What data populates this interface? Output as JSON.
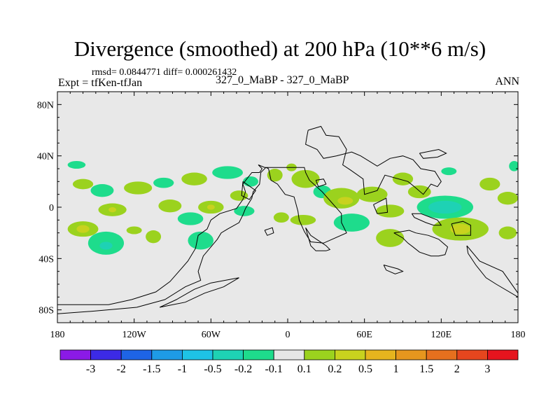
{
  "header": {
    "title": "Divergence (smoothed) at 200 hPa (10**6 m/s)",
    "stats": "rmsd= 0.0844771 diff= 0.000261432",
    "expt": "Expt = tfKen-tfJan",
    "case": "327_0_MaBP - 327_0_MaBP",
    "season": "ANN"
  },
  "chart_data": {
    "type": "heatmap",
    "title": "Divergence (smoothed) at 200 hPa (10**6 m/s)",
    "xlim": [
      -180,
      180
    ],
    "ylim": [
      -90,
      90
    ],
    "x_ticks": [
      {
        "value": -180,
        "label": "180"
      },
      {
        "value": -120,
        "label": "120W"
      },
      {
        "value": -60,
        "label": "60W"
      },
      {
        "value": 0,
        "label": "0"
      },
      {
        "value": 60,
        "label": "60E"
      },
      {
        "value": 120,
        "label": "120E"
      },
      {
        "value": 180,
        "label": "180"
      }
    ],
    "y_ticks": [
      {
        "value": 80,
        "label": "80N"
      },
      {
        "value": 40,
        "label": "40N"
      },
      {
        "value": 0,
        "label": "0"
      },
      {
        "value": -40,
        "label": "40S"
      },
      {
        "value": -80,
        "label": "80S"
      }
    ],
    "background_color": "#e8e8e8",
    "colorbar": {
      "colors": [
        "#8b1ae6",
        "#3c2ae6",
        "#1e64e6",
        "#1e9be6",
        "#1ec3e6",
        "#1ed2b4",
        "#1edc8c",
        "#e6e6e6",
        "#9bd21e",
        "#c8d21e",
        "#e6b41e",
        "#e6961e",
        "#e6701e",
        "#e6461e",
        "#e6141e"
      ],
      "labels": [
        "-3",
        "-2",
        "-1.5",
        "-1",
        "-0.5",
        "-0.2",
        "-0.1",
        "0.1",
        "0.2",
        "0.5",
        "1",
        "1.5",
        "2",
        "3"
      ]
    },
    "features": [
      {
        "lon": -165,
        "lat": 33,
        "rx": 7,
        "ry": 3,
        "level": -0.1
      },
      {
        "lon": -160,
        "lat": 18,
        "rx": 8,
        "ry": 4,
        "level": 0.1
      },
      {
        "lon": -160,
        "lat": -17,
        "rx": 12,
        "ry": 6,
        "level": 0.1
      },
      {
        "lon": -160,
        "lat": -17,
        "rx": 5,
        "ry": 3,
        "level": 0.2
      },
      {
        "lon": -145,
        "lat": 13,
        "rx": 9,
        "ry": 5,
        "level": -0.1
      },
      {
        "lon": -137,
        "lat": -2,
        "rx": 11,
        "ry": 5,
        "level": 0.1
      },
      {
        "lon": -137,
        "lat": -2,
        "rx": 3,
        "ry": 2,
        "level": 0.2
      },
      {
        "lon": -142,
        "lat": -28,
        "rx": 14,
        "ry": 9,
        "level": -0.1
      },
      {
        "lon": -142,
        "lat": -30,
        "rx": 5,
        "ry": 3,
        "level": -0.2
      },
      {
        "lon": -117,
        "lat": 15,
        "rx": 11,
        "ry": 5,
        "level": 0.1
      },
      {
        "lon": -120,
        "lat": -18,
        "rx": 6,
        "ry": 3,
        "level": 0.1
      },
      {
        "lon": -105,
        "lat": -23,
        "rx": 6,
        "ry": 5,
        "level": 0.1
      },
      {
        "lon": -97,
        "lat": 19,
        "rx": 8,
        "ry": 4,
        "level": -0.1
      },
      {
        "lon": -92,
        "lat": 1,
        "rx": 9,
        "ry": 5,
        "level": 0.1
      },
      {
        "lon": -73,
        "lat": 22,
        "rx": 10,
        "ry": 5,
        "level": 0.1
      },
      {
        "lon": -76,
        "lat": -9,
        "rx": 10,
        "ry": 5,
        "level": -0.1
      },
      {
        "lon": -68,
        "lat": -26,
        "rx": 10,
        "ry": 7,
        "level": -0.1
      },
      {
        "lon": -60,
        "lat": 0,
        "rx": 10,
        "ry": 5,
        "level": 0.1
      },
      {
        "lon": -60,
        "lat": 0,
        "rx": 3,
        "ry": 2,
        "level": 0.2
      },
      {
        "lon": -47,
        "lat": 27,
        "rx": 12,
        "ry": 5,
        "level": -0.1
      },
      {
        "lon": -38,
        "lat": 9,
        "rx": 7,
        "ry": 4,
        "level": 0.1
      },
      {
        "lon": -29,
        "lat": 20,
        "rx": 6,
        "ry": 4,
        "level": -0.1
      },
      {
        "lon": -34,
        "lat": -3,
        "rx": 8,
        "ry": 4,
        "level": -0.1
      },
      {
        "lon": -10,
        "lat": 25,
        "rx": 6,
        "ry": 5,
        "level": 0.1
      },
      {
        "lon": -5,
        "lat": -8,
        "rx": 6,
        "ry": 4,
        "level": 0.1
      },
      {
        "lon": 3,
        "lat": 31,
        "rx": 4,
        "ry": 3,
        "level": 0.1
      },
      {
        "lon": 14,
        "lat": 22,
        "rx": 11,
        "ry": 7,
        "level": 0.1
      },
      {
        "lon": 12,
        "lat": -10,
        "rx": 10,
        "ry": 4,
        "level": 0.1
      },
      {
        "lon": 27,
        "lat": 12,
        "rx": 7,
        "ry": 5,
        "level": -0.1
      },
      {
        "lon": 42,
        "lat": 7,
        "rx": 14,
        "ry": 8,
        "level": 0.1
      },
      {
        "lon": 45,
        "lat": 5,
        "rx": 6,
        "ry": 3,
        "level": 0.2
      },
      {
        "lon": 50,
        "lat": -12,
        "rx": 14,
        "ry": 7,
        "level": -0.1
      },
      {
        "lon": 66,
        "lat": 10,
        "rx": 12,
        "ry": 6,
        "level": 0.1
      },
      {
        "lon": 90,
        "lat": 22,
        "rx": 8,
        "ry": 5,
        "level": 0.1
      },
      {
        "lon": 80,
        "lat": -3,
        "rx": 11,
        "ry": 5,
        "level": 0.1
      },
      {
        "lon": 80,
        "lat": -24,
        "rx": 11,
        "ry": 7,
        "level": 0.1
      },
      {
        "lon": 103,
        "lat": 12,
        "rx": 9,
        "ry": 5,
        "level": 0.1
      },
      {
        "lon": 126,
        "lat": 28,
        "rx": 6,
        "ry": 3,
        "level": -0.1
      },
      {
        "lon": 123,
        "lat": 0,
        "rx": 22,
        "ry": 9,
        "level": -0.1
      },
      {
        "lon": 123,
        "lat": 0,
        "rx": 13,
        "ry": 5,
        "level": -0.2
      },
      {
        "lon": 135,
        "lat": -17,
        "rx": 22,
        "ry": 9,
        "level": 0.1
      },
      {
        "lon": 135,
        "lat": -17,
        "rx": 8,
        "ry": 4,
        "level": 0.2
      },
      {
        "lon": 158,
        "lat": 18,
        "rx": 8,
        "ry": 5,
        "level": 0.1
      },
      {
        "lon": 172,
        "lat": 7,
        "rx": 8,
        "ry": 5,
        "level": 0.1
      },
      {
        "lon": 172,
        "lat": -20,
        "rx": 7,
        "ry": 5,
        "level": 0.1
      },
      {
        "lon": 177,
        "lat": 32,
        "rx": 4,
        "ry": 4,
        "level": -0.1
      }
    ],
    "coastlines": [
      [
        [
          -180,
          -76
        ],
        [
          -140,
          -76
        ],
        [
          -122,
          -72
        ],
        [
          -103,
          -66
        ],
        [
          -92,
          -58
        ],
        [
          -85,
          -50
        ],
        [
          -78,
          -42
        ],
        [
          -72,
          -32
        ],
        [
          -70,
          -22
        ],
        [
          -63,
          -17
        ],
        [
          -60,
          -10
        ],
        [
          -53,
          -5
        ],
        [
          -40,
          -1
        ],
        [
          -35,
          6
        ],
        [
          -33,
          12
        ],
        [
          -35,
          18
        ],
        [
          -32,
          22
        ],
        [
          -28,
          27
        ],
        [
          -22,
          27
        ],
        [
          -20,
          30
        ],
        [
          -23,
          33
        ],
        [
          -18,
          31
        ],
        [
          -10,
          31
        ],
        [
          -3,
          31
        ],
        [
          3,
          31
        ],
        [
          13,
          31
        ],
        [
          14,
          27
        ],
        [
          17,
          21
        ],
        [
          27,
          12
        ],
        [
          42,
          -5
        ],
        [
          42,
          -12
        ],
        [
          46,
          -20
        ],
        [
          28,
          -28
        ],
        [
          18,
          -27
        ],
        [
          13,
          -19
        ],
        [
          9,
          -10
        ],
        [
          8,
          -3
        ],
        [
          5,
          8
        ],
        [
          -2,
          10
        ],
        [
          -8,
          18
        ],
        [
          -13,
          21
        ],
        [
          -15,
          30
        ],
        [
          -17,
          31
        ],
        [
          -21,
          27
        ],
        [
          -22,
          18
        ],
        [
          -27,
          12
        ],
        [
          -28,
          7
        ],
        [
          -33,
          -1
        ],
        [
          -35,
          -6
        ],
        [
          -38,
          -12
        ],
        [
          -47,
          -17
        ],
        [
          -52,
          -20
        ],
        [
          -55,
          -25
        ],
        [
          -66,
          -38
        ],
        [
          -70,
          -50
        ],
        [
          -68,
          -57
        ],
        [
          -80,
          -62
        ],
        [
          -96,
          -72
        ],
        [
          -118,
          -78
        ],
        [
          -152,
          -81
        ],
        [
          -180,
          -83
        ]
      ],
      [
        [
          -60,
          -59
        ],
        [
          -38,
          -55
        ],
        [
          -50,
          -62
        ],
        [
          -65,
          -67
        ],
        [
          -80,
          -74
        ],
        [
          -100,
          -78
        ],
        [
          -87,
          -72
        ],
        [
          -73,
          -64
        ],
        [
          -60,
          -59
        ]
      ],
      [
        [
          -35,
          20
        ],
        [
          -25,
          13
        ],
        [
          -30,
          6
        ],
        [
          -36,
          9
        ],
        [
          -35,
          20
        ]
      ],
      [
        [
          14,
          -16
        ],
        [
          18,
          -22
        ],
        [
          24,
          -26
        ],
        [
          30,
          -30
        ],
        [
          33,
          -33
        ],
        [
          30,
          -34
        ],
        [
          22,
          -34
        ],
        [
          18,
          -30
        ],
        [
          14,
          -16
        ]
      ],
      [
        [
          -18,
          -18
        ],
        [
          -12,
          -16
        ],
        [
          -11,
          -20
        ],
        [
          -16,
          -22
        ],
        [
          -18,
          -18
        ]
      ],
      [
        [
          16,
          60
        ],
        [
          26,
          63
        ],
        [
          30,
          56
        ],
        [
          40,
          55
        ],
        [
          46,
          45
        ],
        [
          43,
          33
        ],
        [
          49,
          29
        ],
        [
          59,
          22
        ],
        [
          60,
          10
        ],
        [
          70,
          13
        ],
        [
          76,
          25
        ],
        [
          94,
          20
        ],
        [
          99,
          16
        ],
        [
          106,
          10
        ],
        [
          112,
          18
        ],
        [
          117,
          16
        ],
        [
          120,
          20
        ],
        [
          115,
          28
        ],
        [
          104,
          30
        ],
        [
          98,
          37
        ],
        [
          90,
          40
        ],
        [
          80,
          38
        ],
        [
          70,
          32
        ],
        [
          57,
          40
        ],
        [
          50,
          43
        ],
        [
          38,
          40
        ],
        [
          28,
          38
        ],
        [
          23,
          45
        ],
        [
          14,
          49
        ],
        [
          15,
          55
        ],
        [
          16,
          60
        ]
      ],
      [
        [
          103,
          42
        ],
        [
          118,
          45
        ],
        [
          124,
          42
        ],
        [
          117,
          39
        ],
        [
          106,
          38
        ],
        [
          103,
          42
        ]
      ],
      [
        [
          22,
          21
        ],
        [
          24,
          16
        ],
        [
          30,
          18
        ],
        [
          28,
          22
        ],
        [
          22,
          21
        ]
      ],
      [
        [
          67,
          2
        ],
        [
          77,
          7
        ],
        [
          78,
          -4
        ],
        [
          70,
          -5
        ],
        [
          67,
          2
        ]
      ],
      [
        [
          97,
          -5
        ],
        [
          104,
          -5
        ],
        [
          117,
          -10
        ],
        [
          120,
          -14
        ],
        [
          114,
          -14
        ],
        [
          108,
          -12
        ],
        [
          99,
          -8
        ],
        [
          97,
          -5
        ]
      ],
      [
        [
          83,
          -20
        ],
        [
          90,
          -24
        ],
        [
          94,
          -28
        ],
        [
          98,
          -31
        ],
        [
          103,
          -35
        ],
        [
          112,
          -38
        ],
        [
          118,
          -38
        ],
        [
          123,
          -37
        ],
        [
          125,
          -31
        ],
        [
          118,
          -25
        ],
        [
          110,
          -22
        ],
        [
          100,
          -20
        ],
        [
          95,
          -18
        ],
        [
          83,
          -20
        ]
      ],
      [
        [
          128,
          -13
        ],
        [
          137,
          -11
        ],
        [
          143,
          -14
        ],
        [
          143,
          -22
        ],
        [
          131,
          -22
        ],
        [
          128,
          -13
        ]
      ],
      [
        [
          140,
          -30
        ],
        [
          150,
          -42
        ],
        [
          168,
          -50
        ],
        [
          180,
          -67
        ],
        [
          180,
          -70
        ],
        [
          163,
          -60
        ],
        [
          155,
          -55
        ],
        [
          147,
          -45
        ],
        [
          141,
          -36
        ],
        [
          140,
          -30
        ]
      ],
      [
        [
          75,
          -45
        ],
        [
          86,
          -48
        ],
        [
          90,
          -50
        ],
        [
          84,
          -52
        ],
        [
          77,
          -49
        ],
        [
          75,
          -45
        ]
      ]
    ]
  }
}
